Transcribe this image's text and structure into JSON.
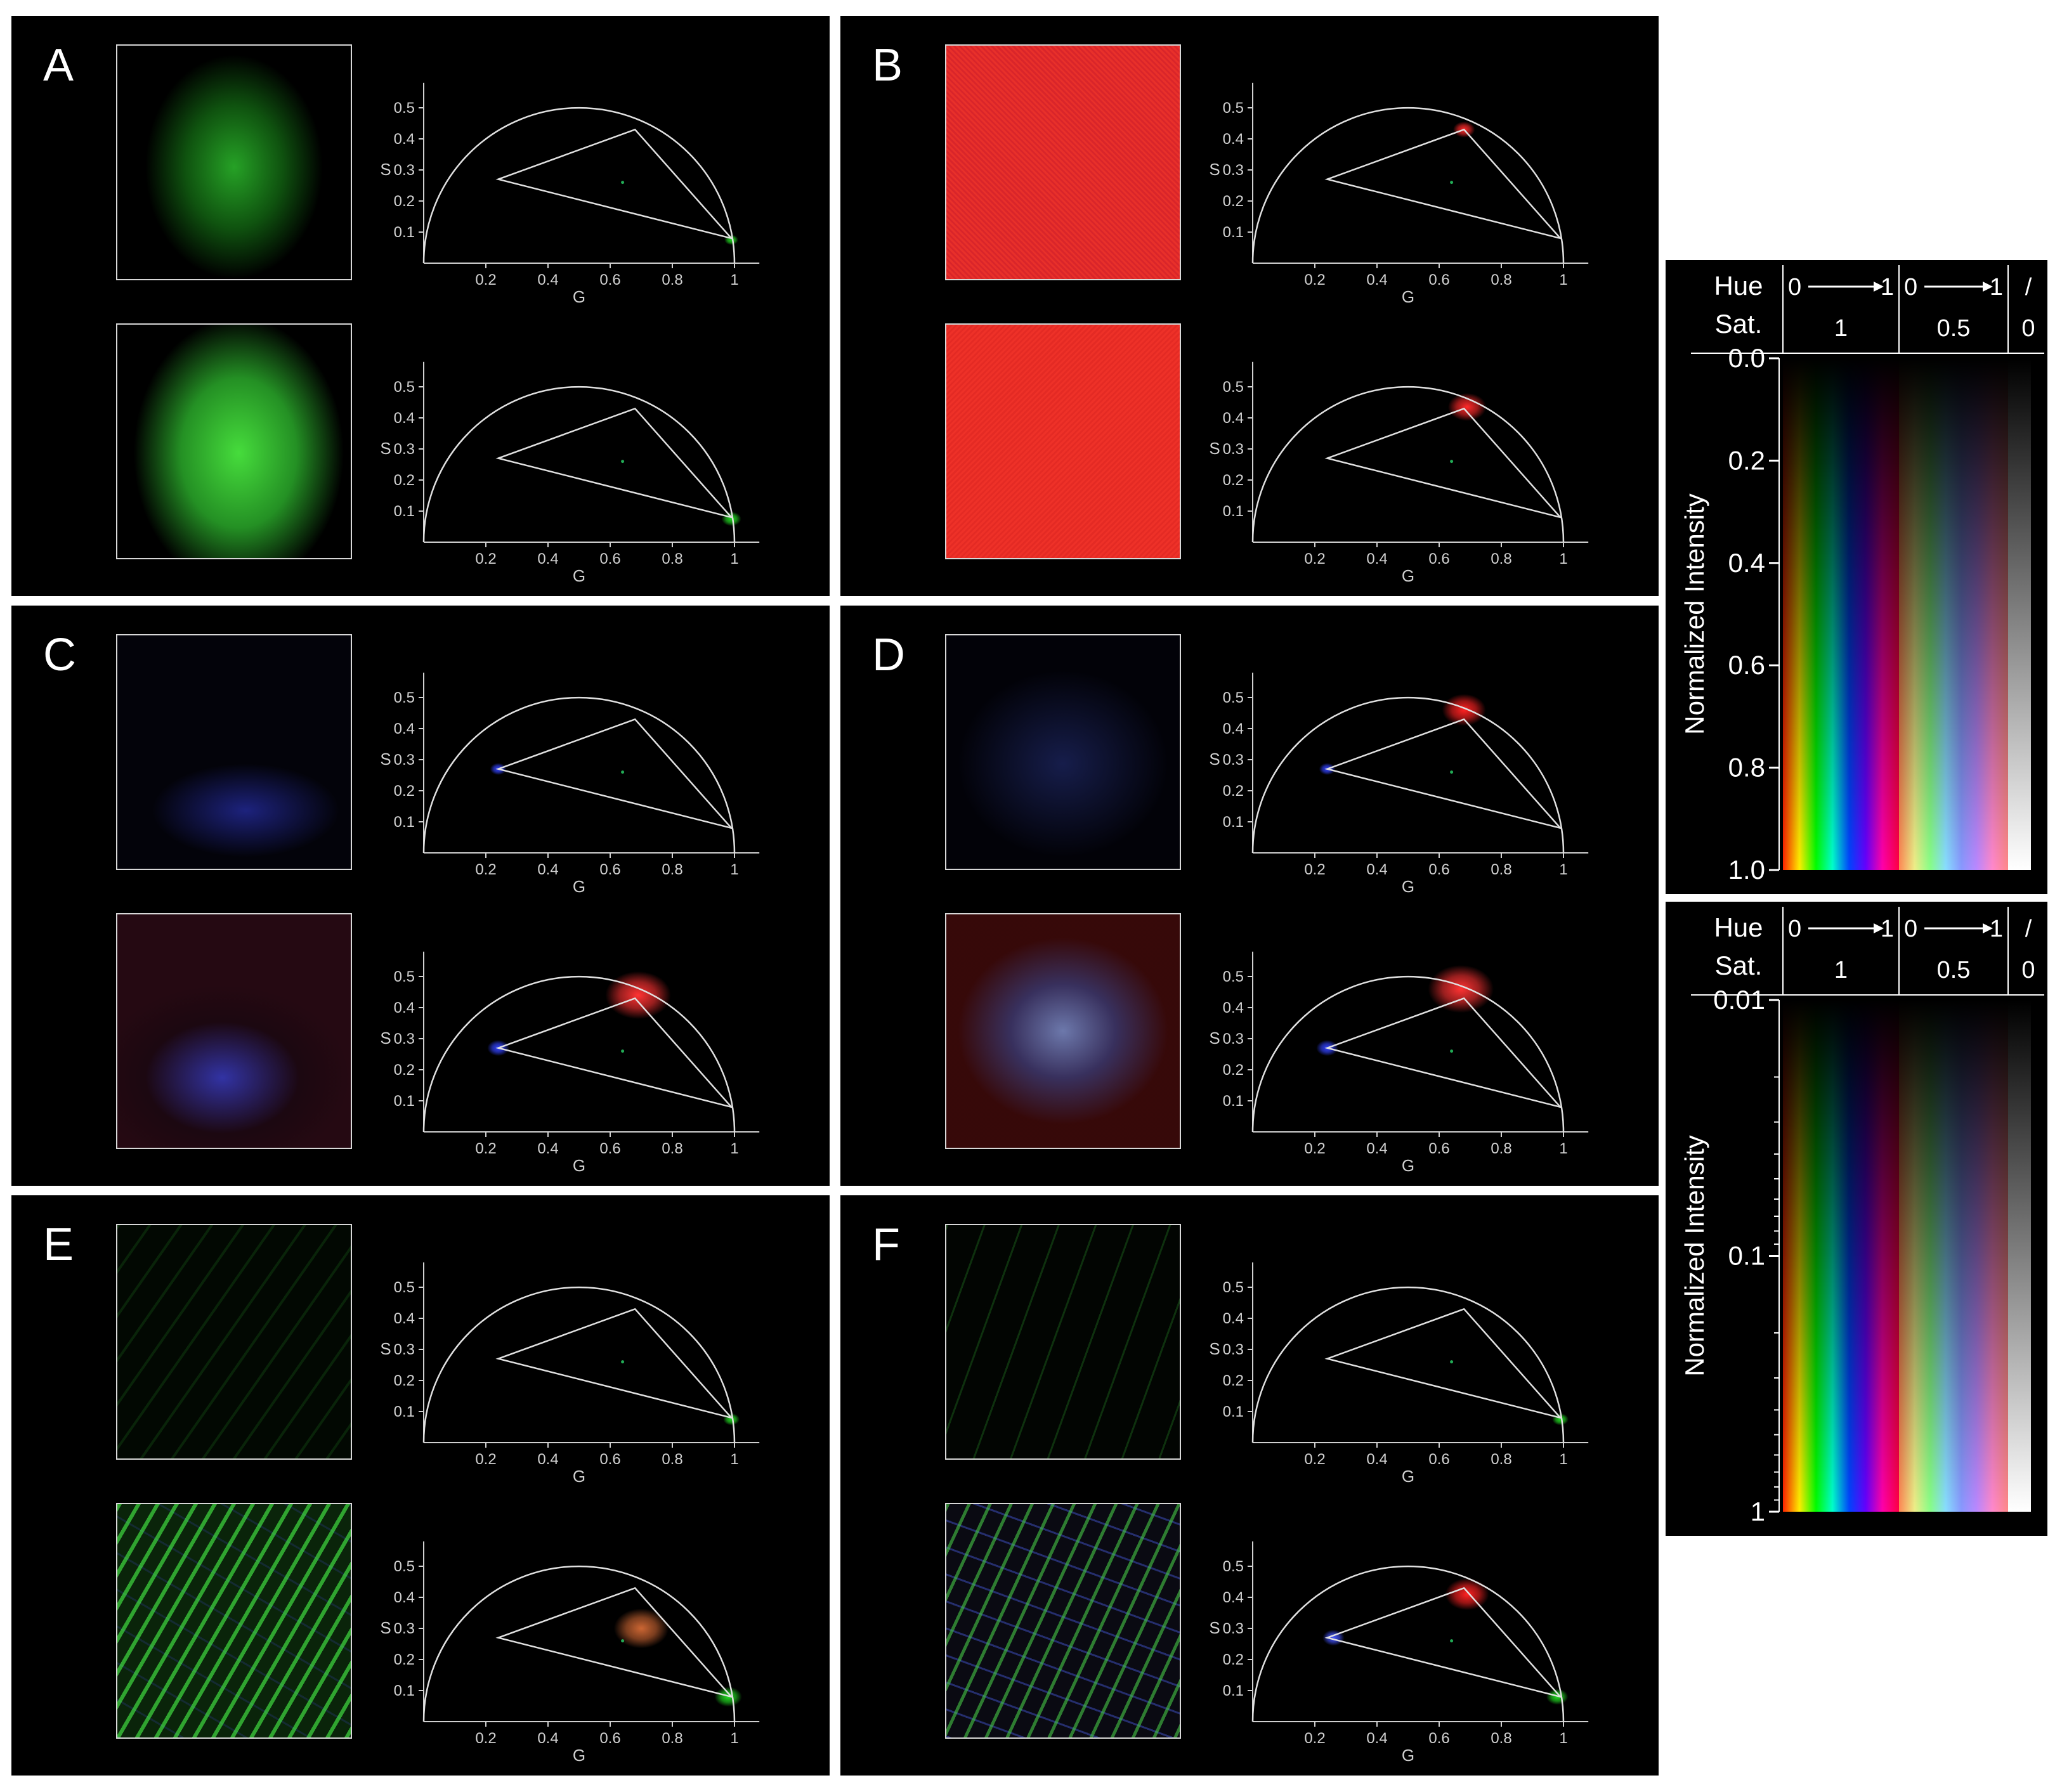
{
  "figure": {
    "panels": [
      {
        "letter": "A"
      },
      {
        "letter": "B"
      },
      {
        "letter": "C"
      },
      {
        "letter": "D"
      },
      {
        "letter": "E"
      },
      {
        "letter": "F"
      }
    ]
  },
  "chart_data": [
    {
      "type": "scatter",
      "name": "phasor-plot",
      "xlabel": "G",
      "ylabel": "S",
      "xlim": [
        0,
        1
      ],
      "ylim": [
        0,
        0.5
      ],
      "x_ticks": [
        "0.2",
        "0.4",
        "0.6",
        "0.8",
        "1"
      ],
      "y_ticks": [
        "0.1",
        "0.2",
        "0.3",
        "0.4",
        "0.5"
      ],
      "universal_circle": {
        "center": [
          0.5,
          0
        ],
        "radius": 0.5
      },
      "reference_triangle": [
        [
          0.24,
          0.27
        ],
        [
          0.68,
          0.43
        ],
        [
          0.99,
          0.08
        ]
      ],
      "center_marker": [
        0.64,
        0.26
      ],
      "plots_per_panel": 2,
      "panel_clusters": {
        "A": [
          [
            {
              "g": 0.99,
              "s": 0.075,
              "color": "#22dd22",
              "spread": 0.012
            }
          ],
          [
            {
              "g": 0.99,
              "s": 0.075,
              "color": "#22dd22",
              "spread": 0.018
            }
          ]
        ],
        "B": [
          [
            {
              "g": 0.68,
              "s": 0.43,
              "color": "#ff2a2a",
              "spread": 0.02
            }
          ],
          [
            {
              "g": 0.69,
              "s": 0.435,
              "color": "#ff2a2a",
              "spread": 0.035
            }
          ]
        ],
        "C": [
          [
            {
              "g": 0.24,
              "s": 0.27,
              "color": "#3344ff",
              "spread": 0.015
            }
          ],
          [
            {
              "g": 0.24,
              "s": 0.27,
              "color": "#3344ff",
              "spread": 0.02
            },
            {
              "g": 0.69,
              "s": 0.44,
              "color": "#ff3333",
              "spread": 0.06
            }
          ]
        ],
        "D": [
          [
            {
              "g": 0.24,
              "s": 0.27,
              "color": "#3344ff",
              "spread": 0.015
            },
            {
              "g": 0.68,
              "s": 0.46,
              "color": "#ff2222",
              "spread": 0.04
            }
          ],
          [
            {
              "g": 0.24,
              "s": 0.27,
              "color": "#3344ff",
              "spread": 0.02
            },
            {
              "g": 0.67,
              "s": 0.46,
              "color": "#ff3333",
              "spread": 0.06
            }
          ]
        ],
        "E": [
          [
            {
              "g": 0.99,
              "s": 0.075,
              "color": "#22dd22",
              "spread": 0.015
            }
          ],
          [
            {
              "g": 0.98,
              "s": 0.08,
              "color": "#22dd22",
              "spread": 0.025
            },
            {
              "g": 0.7,
              "s": 0.3,
              "color": "#cc6633",
              "spread": 0.05
            }
          ]
        ],
        "F": [
          [
            {
              "g": 0.99,
              "s": 0.075,
              "color": "#22dd22",
              "spread": 0.015
            }
          ],
          [
            {
              "g": 0.98,
              "s": 0.08,
              "color": "#22dd22",
              "spread": 0.02
            },
            {
              "g": 0.69,
              "s": 0.41,
              "color": "#ff2222",
              "spread": 0.04
            },
            {
              "g": 0.26,
              "s": 0.27,
              "color": "#4455ff",
              "spread": 0.02
            }
          ]
        ]
      }
    },
    {
      "type": "heatmap",
      "name": "colormap-legend-linear",
      "header": {
        "row1_label": "Hue",
        "row2_label": "Sat.",
        "hue_range": [
          "0",
          "1",
          "0",
          "1",
          "/"
        ],
        "sat_values": [
          "1",
          "0.5",
          "0"
        ]
      },
      "ylabel": "Normalized Intensity",
      "scale": "linear",
      "ticks": [
        "0.0",
        "0.2",
        "0.4",
        "0.6",
        "0.8",
        "1.0"
      ],
      "ylim": [
        0,
        1
      ]
    },
    {
      "type": "heatmap",
      "name": "colormap-legend-log",
      "header": {
        "row1_label": "Hue",
        "row2_label": "Sat.",
        "hue_range": [
          "0",
          "1",
          "0",
          "1",
          "/"
        ],
        "sat_values": [
          "1",
          "0.5",
          "0"
        ]
      },
      "ylabel": "Normalized Intensity",
      "scale": "log",
      "ticks": [
        "0.01",
        "0.1",
        "1"
      ],
      "ylim": [
        0.01,
        1
      ]
    }
  ],
  "micrographs": {
    "A": [
      "green-tissue",
      "green-tissue-bright"
    ],
    "B": [
      "red-noise",
      "red-noise-bright"
    ],
    "C": [
      "blue-crystals-dim",
      "blue-crystals"
    ],
    "D": [
      "blue-star-dim",
      "mixed-star"
    ],
    "E": [
      "green-grass-dim",
      "green-grass"
    ],
    "F": [
      "green-grass-sparse",
      "green-blue-grass"
    ]
  },
  "colors": {
    "panel_bg": "#000000",
    "axis": "#d0d0d0",
    "border": "#d8d8d8"
  }
}
